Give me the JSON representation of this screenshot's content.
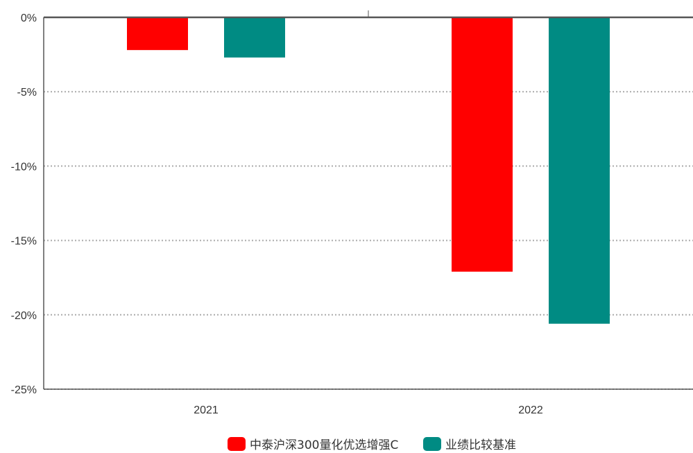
{
  "chart_data": {
    "type": "bar",
    "categories": [
      "2021",
      "2022"
    ],
    "series": [
      {
        "name": "中泰沪深300量化优选增强C",
        "values": [
          -2.2,
          -17.1
        ],
        "color": "#ff0000"
      },
      {
        "name": "业绩比较基准",
        "values": [
          -2.7,
          -20.6
        ],
        "color": "#008b83"
      }
    ],
    "ylim": [
      -25,
      0
    ],
    "yticks": [
      0,
      -5,
      -10,
      -15,
      -20,
      -25
    ],
    "ytick_labels": [
      "0%",
      "-5%",
      "-10%",
      "-15%",
      "-20%",
      "-25%"
    ],
    "grid": true,
    "legend": "bottom-center"
  }
}
